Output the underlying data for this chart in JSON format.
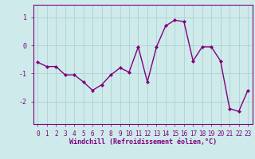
{
  "x": [
    0,
    1,
    2,
    3,
    4,
    5,
    6,
    7,
    8,
    9,
    10,
    11,
    12,
    13,
    14,
    15,
    16,
    17,
    18,
    19,
    20,
    21,
    22,
    23
  ],
  "y": [
    -0.6,
    -0.75,
    -0.75,
    -1.05,
    -1.05,
    -1.3,
    -1.6,
    -1.4,
    -1.05,
    -0.8,
    -0.95,
    -0.05,
    -1.3,
    -0.05,
    0.7,
    0.9,
    0.85,
    -0.55,
    -0.05,
    -0.05,
    -0.55,
    -2.25,
    -2.35,
    -1.6
  ],
  "line_color": "#800080",
  "marker": "D",
  "markersize": 2.0,
  "bg_color": "#ceeaea",
  "grid_color": "#a8cccc",
  "xlabel": "Windchill (Refroidissement éolien,°C)",
  "ylim": [
    -2.8,
    1.45
  ],
  "xlim": [
    -0.5,
    23.5
  ],
  "yticks": [
    -2,
    -1,
    0,
    1
  ],
  "xticks": [
    0,
    1,
    2,
    3,
    4,
    5,
    6,
    7,
    8,
    9,
    10,
    11,
    12,
    13,
    14,
    15,
    16,
    17,
    18,
    19,
    20,
    21,
    22,
    23
  ],
  "axis_color": "#800080",
  "tick_label_color": "#800080",
  "xlabel_color": "#800080",
  "linewidth": 1.0,
  "tick_fontsize": 5.5,
  "xlabel_fontsize": 6.0,
  "ylabel_fontsize": 6.0,
  "spine_linewidth": 0.8,
  "grid_linewidth": 0.5
}
